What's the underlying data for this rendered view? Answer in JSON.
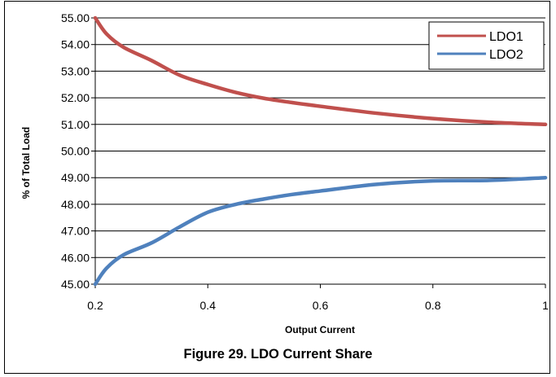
{
  "caption": "Figure 29. LDO Current Share",
  "chart_data": {
    "type": "line",
    "xlabel": "Output Current",
    "ylabel": "% of Total Load",
    "xlim": [
      0.2,
      1
    ],
    "ylim": [
      45,
      55
    ],
    "xticks": [
      0.2,
      0.4,
      0.6,
      0.8,
      1
    ],
    "xtick_labels": [
      "0.2",
      "0.4",
      "0.6",
      "0.8",
      "1"
    ],
    "yticks": [
      45,
      46,
      47,
      48,
      49,
      50,
      51,
      52,
      53,
      54,
      55
    ],
    "ytick_labels": [
      "45.00",
      "46.00",
      "47.00",
      "48.00",
      "49.00",
      "50.00",
      "51.00",
      "52.00",
      "53.00",
      "54.00",
      "55.00"
    ],
    "grid": "horizontal",
    "legend": "top-right",
    "series": [
      {
        "name": "LDO1",
        "color": "#c0504d",
        "x": [
          0.2,
          0.22,
          0.25,
          0.3,
          0.35,
          0.4,
          0.45,
          0.5,
          0.55,
          0.6,
          0.7,
          0.8,
          0.9,
          1.0
        ],
        "y": [
          55.0,
          54.4,
          53.9,
          53.4,
          52.85,
          52.5,
          52.2,
          51.98,
          51.82,
          51.68,
          51.42,
          51.22,
          51.08,
          51.0
        ]
      },
      {
        "name": "LDO2",
        "color": "#4f81bd",
        "x": [
          0.2,
          0.22,
          0.25,
          0.3,
          0.35,
          0.4,
          0.45,
          0.5,
          0.55,
          0.6,
          0.7,
          0.8,
          0.9,
          1.0
        ],
        "y": [
          45.0,
          45.6,
          46.1,
          46.55,
          47.15,
          47.7,
          48.0,
          48.2,
          48.37,
          48.5,
          48.75,
          48.88,
          48.9,
          49.0
        ]
      }
    ]
  }
}
